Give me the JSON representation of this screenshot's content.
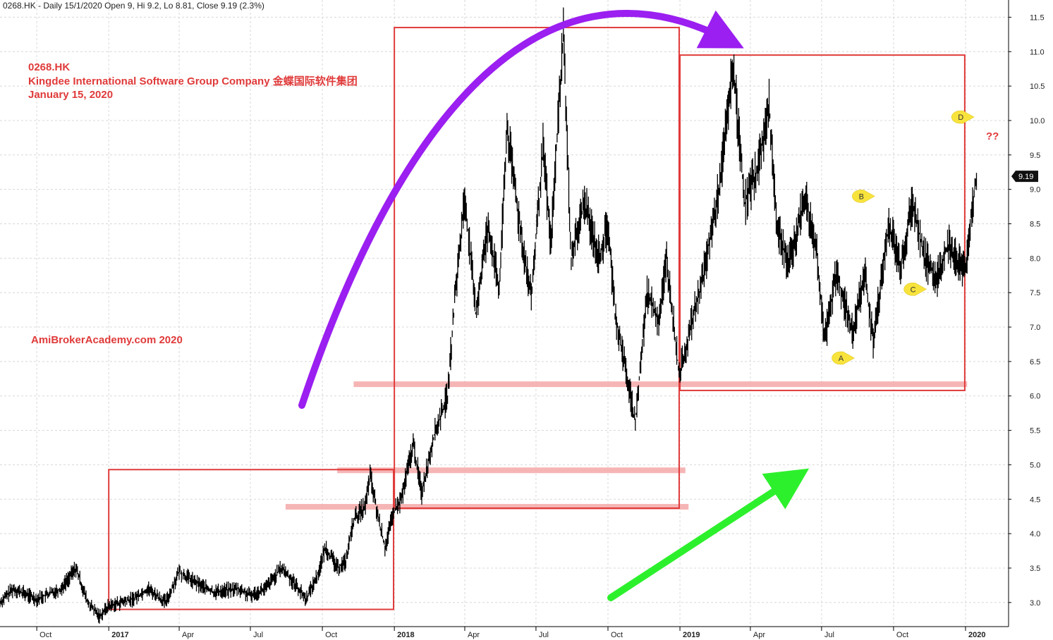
{
  "header": {
    "text": "0268.HK - Daily 15/1/2020 Open 9, Hi 9.2, Lo 8.81, Close 9.19 (2.3%)"
  },
  "annotations": {
    "ticker": "0268.HK",
    "company": "Kingdee International Software Group Company 金蝶国际软件集团",
    "date": "January 15, 2020",
    "watermark": "AmiBrokerAcademy.com  2020",
    "question": "??"
  },
  "colors": {
    "price": "#000000",
    "box": "#e03a3a",
    "band": "#f4a8a8",
    "arc_arrow": "#9b1ff0",
    "up_arrow": "#2df02d",
    "callout": "#f8e33c",
    "grid": "#d8d8d8",
    "price_tag": "#111111"
  },
  "chart_data": {
    "type": "line",
    "title": "0268.HK - Daily 15/1/2020 Open 9, Hi 9.2, Lo 8.81, Close 9.19 (2.3%)",
    "xlabel": "",
    "ylabel": "",
    "x_range": [
      "2016-08-15",
      "2020-02-25"
    ],
    "ylim": [
      2.65,
      11.75
    ],
    "y_ticks": [
      3.0,
      3.5,
      4.0,
      4.5,
      5.0,
      5.5,
      6.0,
      6.5,
      7.0,
      7.5,
      8.0,
      8.5,
      9.0,
      9.5,
      10.0,
      10.5,
      11.0,
      11.5
    ],
    "x_ticks": [
      {
        "date": "2016-10-01",
        "label": "Oct",
        "bold": false
      },
      {
        "date": "2017-01-01",
        "label": "2017",
        "bold": true
      },
      {
        "date": "2017-04-01",
        "label": "Apr",
        "bold": false
      },
      {
        "date": "2017-07-01",
        "label": "Jul",
        "bold": false
      },
      {
        "date": "2017-10-01",
        "label": "Oct",
        "bold": false
      },
      {
        "date": "2018-01-01",
        "label": "2018",
        "bold": true
      },
      {
        "date": "2018-04-01",
        "label": "Apr",
        "bold": false
      },
      {
        "date": "2018-07-01",
        "label": "Jul",
        "bold": false
      },
      {
        "date": "2018-10-01",
        "label": "Oct",
        "bold": false
      },
      {
        "date": "2019-01-01",
        "label": "2019",
        "bold": true
      },
      {
        "date": "2019-04-01",
        "label": "Apr",
        "bold": false
      },
      {
        "date": "2019-07-01",
        "label": "Jul",
        "bold": false
      },
      {
        "date": "2019-10-01",
        "label": "Oct",
        "bold": false
      },
      {
        "date": "2020-01-01",
        "label": "2020",
        "bold": true
      }
    ],
    "grid": true,
    "last_price": {
      "value": 9.19,
      "label": "9.19"
    },
    "series": [
      {
        "values": [
          {
            "x": "2016-08-15",
            "y": 3.0
          },
          {
            "x": "2016-09-01",
            "y": 3.2
          },
          {
            "x": "2016-10-01",
            "y": 3.05
          },
          {
            "x": "2016-11-01",
            "y": 3.2
          },
          {
            "x": "2016-11-20",
            "y": 3.5
          },
          {
            "x": "2016-12-05",
            "y": 3.0
          },
          {
            "x": "2016-12-20",
            "y": 2.8
          },
          {
            "x": "2017-01-01",
            "y": 2.95
          },
          {
            "x": "2017-02-01",
            "y": 3.05
          },
          {
            "x": "2017-02-20",
            "y": 3.2
          },
          {
            "x": "2017-03-15",
            "y": 3.0
          },
          {
            "x": "2017-04-01",
            "y": 3.45
          },
          {
            "x": "2017-04-20",
            "y": 3.3
          },
          {
            "x": "2017-05-15",
            "y": 3.15
          },
          {
            "x": "2017-06-15",
            "y": 3.2
          },
          {
            "x": "2017-07-01",
            "y": 3.1
          },
          {
            "x": "2017-07-20",
            "y": 3.2
          },
          {
            "x": "2017-08-10",
            "y": 3.5
          },
          {
            "x": "2017-08-25",
            "y": 3.3
          },
          {
            "x": "2017-09-10",
            "y": 3.05
          },
          {
            "x": "2017-09-25",
            "y": 3.4
          },
          {
            "x": "2017-10-05",
            "y": 3.8
          },
          {
            "x": "2017-10-20",
            "y": 3.5
          },
          {
            "x": "2017-10-31",
            "y": 3.6
          },
          {
            "x": "2017-11-10",
            "y": 4.2
          },
          {
            "x": "2017-11-25",
            "y": 4.4
          },
          {
            "x": "2017-12-01",
            "y": 4.85
          },
          {
            "x": "2017-12-10",
            "y": 4.3
          },
          {
            "x": "2017-12-20",
            "y": 3.8
          },
          {
            "x": "2017-12-31",
            "y": 4.3
          },
          {
            "x": "2018-01-10",
            "y": 4.5
          },
          {
            "x": "2018-01-25",
            "y": 5.3
          },
          {
            "x": "2018-02-05",
            "y": 4.6
          },
          {
            "x": "2018-02-20",
            "y": 5.4
          },
          {
            "x": "2018-03-10",
            "y": 6.0
          },
          {
            "x": "2018-03-20",
            "y": 7.5
          },
          {
            "x": "2018-04-01",
            "y": 8.9
          },
          {
            "x": "2018-04-15",
            "y": 7.2
          },
          {
            "x": "2018-05-01",
            "y": 8.5
          },
          {
            "x": "2018-05-15",
            "y": 7.5
          },
          {
            "x": "2018-05-25",
            "y": 9.9
          },
          {
            "x": "2018-06-10",
            "y": 8.5
          },
          {
            "x": "2018-06-25",
            "y": 7.4
          },
          {
            "x": "2018-07-10",
            "y": 9.6
          },
          {
            "x": "2018-07-20",
            "y": 8.2
          },
          {
            "x": "2018-08-05",
            "y": 11.3
          },
          {
            "x": "2018-08-15",
            "y": 8.0
          },
          {
            "x": "2018-09-01",
            "y": 8.8
          },
          {
            "x": "2018-09-20",
            "y": 8.0
          },
          {
            "x": "2018-10-01",
            "y": 8.5
          },
          {
            "x": "2018-10-10",
            "y": 7.2
          },
          {
            "x": "2018-10-25",
            "y": 6.3
          },
          {
            "x": "2018-11-05",
            "y": 5.6
          },
          {
            "x": "2018-11-20",
            "y": 7.5
          },
          {
            "x": "2018-12-05",
            "y": 7.1
          },
          {
            "x": "2018-12-15",
            "y": 8.0
          },
          {
            "x": "2018-12-31",
            "y": 6.3
          },
          {
            "x": "2019-01-15",
            "y": 7.0
          },
          {
            "x": "2019-02-01",
            "y": 7.8
          },
          {
            "x": "2019-02-20",
            "y": 9.0
          },
          {
            "x": "2019-03-10",
            "y": 10.8
          },
          {
            "x": "2019-03-25",
            "y": 8.8
          },
          {
            "x": "2019-04-10",
            "y": 9.3
          },
          {
            "x": "2019-04-25",
            "y": 10.2
          },
          {
            "x": "2019-05-05",
            "y": 8.5
          },
          {
            "x": "2019-05-20",
            "y": 7.9
          },
          {
            "x": "2019-06-10",
            "y": 8.9
          },
          {
            "x": "2019-06-25",
            "y": 8.1
          },
          {
            "x": "2019-07-05",
            "y": 6.8
          },
          {
            "x": "2019-07-20",
            "y": 7.8
          },
          {
            "x": "2019-08-10",
            "y": 6.9
          },
          {
            "x": "2019-08-25",
            "y": 7.8
          },
          {
            "x": "2019-09-05",
            "y": 6.8
          },
          {
            "x": "2019-09-25",
            "y": 8.5
          },
          {
            "x": "2019-10-10",
            "y": 7.9
          },
          {
            "x": "2019-10-25",
            "y": 8.8
          },
          {
            "x": "2019-11-10",
            "y": 8.0
          },
          {
            "x": "2019-11-25",
            "y": 7.7
          },
          {
            "x": "2019-12-10",
            "y": 8.2
          },
          {
            "x": "2019-12-31",
            "y": 7.8
          },
          {
            "x": "2020-01-08",
            "y": 8.6
          },
          {
            "x": "2020-01-15",
            "y": 9.19
          }
        ]
      }
    ],
    "overlays": {
      "boxes": [
        {
          "x0": "2017-01-01",
          "x1": "2017-12-31",
          "y0": 2.9,
          "y1": 4.93
        },
        {
          "x0": "2018-01-01",
          "x1": "2018-12-31",
          "y0": 4.37,
          "y1": 11.35
        },
        {
          "x0": "2019-01-01",
          "x1": "2019-12-31",
          "y0": 6.08,
          "y1": 10.95
        }
      ],
      "bands": [
        {
          "x0": "2017-08-15",
          "x1": "2019-01-12",
          "y": 4.39
        },
        {
          "x0": "2017-10-20",
          "x1": "2019-01-08",
          "y": 4.92
        },
        {
          "x0": "2017-11-10",
          "x1": "2020-01-03",
          "y": 6.17
        }
      ],
      "callouts": [
        {
          "label": "A",
          "x": "2019-07-25",
          "y": 6.55
        },
        {
          "label": "B",
          "x": "2019-08-20",
          "y": 8.9
        },
        {
          "label": "C",
          "x": "2019-10-25",
          "y": 7.55
        },
        {
          "label": "D",
          "x": "2019-12-25",
          "y": 10.05
        }
      ]
    }
  }
}
